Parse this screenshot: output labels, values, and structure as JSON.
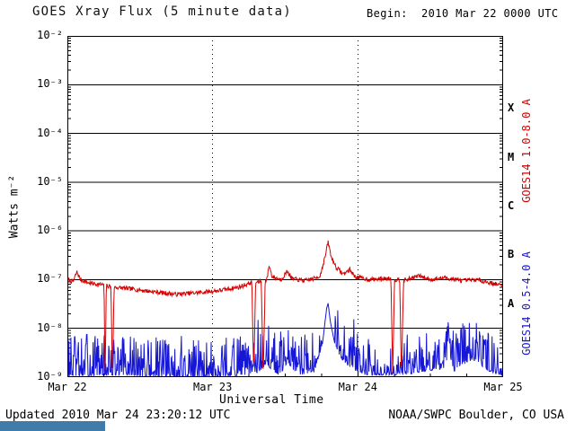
{
  "header": {
    "title": "GOES Xray Flux (5 minute data)",
    "begin_label": "Begin:  2010 Mar 22 0000 UTC"
  },
  "footer": {
    "updated": "Updated 2010 Mar 24 23:20:12 UTC",
    "credit": "NOAA/SWPC Boulder, CO USA"
  },
  "colors": {
    "long_channel": "#d40000",
    "short_channel": "#1616d6",
    "grid": "#000000",
    "text": "#000000",
    "bottom_bar": "#3f7cab"
  },
  "chart_data": {
    "type": "line",
    "title": "GOES Xray Flux (5 minute data)",
    "xlabel": "Universal Time",
    "ylabel": "Watts m⁻²",
    "x_unit": "days_since_begin",
    "x_range_days": [
      0,
      3
    ],
    "x_tick_labels": [
      "Mar 22",
      "Mar 23",
      "Mar 24",
      "Mar 25"
    ],
    "y_log_range": [
      -9,
      -2
    ],
    "y_tick_labels": [
      "10⁻²",
      "10⁻³",
      "10⁻⁴",
      "10⁻⁵",
      "10⁻⁶",
      "10⁻⁷",
      "10⁻⁸",
      "10⁻⁹"
    ],
    "grid": {
      "horizontal": "solid each decade",
      "vertical": "dotted each day"
    },
    "legend_position": "right-rotated",
    "flare_class_letters": [
      {
        "label": "X",
        "log_center": -3.5
      },
      {
        "label": "M",
        "log_center": -4.5
      },
      {
        "label": "C",
        "log_center": -5.5
      },
      {
        "label": "B",
        "log_center": -6.5
      },
      {
        "label": "A",
        "log_center": -7.5
      }
    ],
    "series": [
      {
        "name": "GOES14 1.0-8.0 A",
        "color": "#d40000",
        "seed": 7,
        "noise_log10": 0.045,
        "spike_log10": 0,
        "points": [
          [
            0.0,
            1e-07
          ],
          [
            0.04,
            9e-08
          ],
          [
            0.065,
            1.45e-07
          ],
          [
            0.09,
            1e-07
          ],
          [
            0.15,
            8.5e-08
          ],
          [
            0.22,
            8e-08
          ],
          [
            0.252,
            7.8e-08
          ],
          [
            0.26,
            1.05e-09
          ],
          [
            0.268,
            7.5e-08
          ],
          [
            0.3,
            7.3e-08
          ],
          [
            0.31,
            1.05e-09
          ],
          [
            0.322,
            7e-08
          ],
          [
            0.45,
            6.4e-08
          ],
          [
            0.6,
            5.6e-08
          ],
          [
            0.75,
            5e-08
          ],
          [
            0.9,
            5.4e-08
          ],
          [
            1.05,
            6e-08
          ],
          [
            1.18,
            7e-08
          ],
          [
            1.27,
            8.8e-08
          ],
          [
            1.283,
            1.05e-09
          ],
          [
            1.296,
            8.8e-08
          ],
          [
            1.335,
            9.2e-08
          ],
          [
            1.348,
            1.05e-09
          ],
          [
            1.362,
            9.5e-08
          ],
          [
            1.375,
            1.05e-07
          ],
          [
            1.388,
            2e-07
          ],
          [
            1.41,
            1.15e-07
          ],
          [
            1.47,
            1e-07
          ],
          [
            1.515,
            1.5e-07
          ],
          [
            1.545,
            1.05e-07
          ],
          [
            1.63,
            9.5e-08
          ],
          [
            1.7,
            1.05e-07
          ],
          [
            1.74,
            1.2e-07
          ],
          [
            1.775,
            3e-07
          ],
          [
            1.795,
            6e-07
          ],
          [
            1.815,
            3e-07
          ],
          [
            1.85,
            1.8e-07
          ],
          [
            1.9,
            1.3e-07
          ],
          [
            1.945,
            1.6e-07
          ],
          [
            1.98,
            1.15e-07
          ],
          [
            2.08,
            1e-07
          ],
          [
            2.18,
            1.05e-07
          ],
          [
            2.228,
            1.05e-07
          ],
          [
            2.24,
            1.05e-09
          ],
          [
            2.252,
            1e-07
          ],
          [
            2.288,
            1e-07
          ],
          [
            2.3,
            1.05e-09
          ],
          [
            2.314,
            9.5e-08
          ],
          [
            2.42,
            1.2e-07
          ],
          [
            2.5,
            1e-07
          ],
          [
            2.6,
            1.1e-07
          ],
          [
            2.72,
            9.5e-08
          ],
          [
            2.82,
            1e-07
          ],
          [
            2.92,
            8.5e-08
          ],
          [
            3.0,
            7.5e-08
          ]
        ]
      },
      {
        "name": "GOES14 0.5-4.0 A",
        "color": "#1616d6",
        "seed": 13,
        "noise_log10": 0,
        "spike_log10": 0.85,
        "points": [
          [
            0.0,
            1.05e-09
          ],
          [
            0.3,
            1.1e-09
          ],
          [
            0.7,
            1e-09
          ],
          [
            1.0,
            1e-09
          ],
          [
            1.3,
            1.15e-09
          ],
          [
            1.37,
            1.8e-09
          ],
          [
            1.45,
            1.1e-09
          ],
          [
            1.52,
            1.7e-09
          ],
          [
            1.6,
            1.1e-09
          ],
          [
            1.7,
            1.3e-09
          ],
          [
            1.755,
            4.5e-09
          ],
          [
            1.785,
            2.6e-08
          ],
          [
            1.795,
            3.3e-08
          ],
          [
            1.81,
            1.4e-08
          ],
          [
            1.84,
            5e-09
          ],
          [
            1.88,
            2.5e-09
          ],
          [
            1.95,
            1.5e-09
          ],
          [
            2.05,
            1.1e-09
          ],
          [
            2.3,
            1.1e-09
          ],
          [
            2.45,
            1.3e-09
          ],
          [
            2.6,
            1.5e-09
          ],
          [
            2.63,
            3.2e-09
          ],
          [
            2.66,
            1.3e-09
          ],
          [
            2.75,
            2e-09
          ],
          [
            2.82,
            2.2e-09
          ],
          [
            2.88,
            1.4e-09
          ],
          [
            3.0,
            1.05e-09
          ]
        ]
      }
    ]
  }
}
